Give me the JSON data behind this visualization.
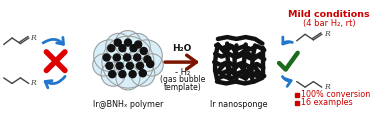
{
  "bg_color": "#ffffff",
  "arrow_color": "#7B1500",
  "blue_arrow_color": "#2277CC",
  "red_x_color": "#DD0000",
  "green_check_color": "#1A6B1A",
  "cloud_fill": "#D8EEF8",
  "cloud_edge": "#999999",
  "nanosponge_color": "#111111",
  "dot_color": "#111111",
  "label_ir_bnhx": "Ir@BNHₓ polymer",
  "label_ir_nano": "Ir nanosponge",
  "label_h2o": "H₂O",
  "label_minus_h2": "- H₂",
  "label_gas_bubble": "(gas bubble",
  "label_template": "template)",
  "label_mild": "Mild conditions",
  "label_mild2": "(4 bar H₂, rt)",
  "label_conversion": "100% conversion",
  "label_examples": "16 examples",
  "bond_color": "#444444",
  "text_color_red": "#CC0000",
  "text_color_dark": "#111111"
}
